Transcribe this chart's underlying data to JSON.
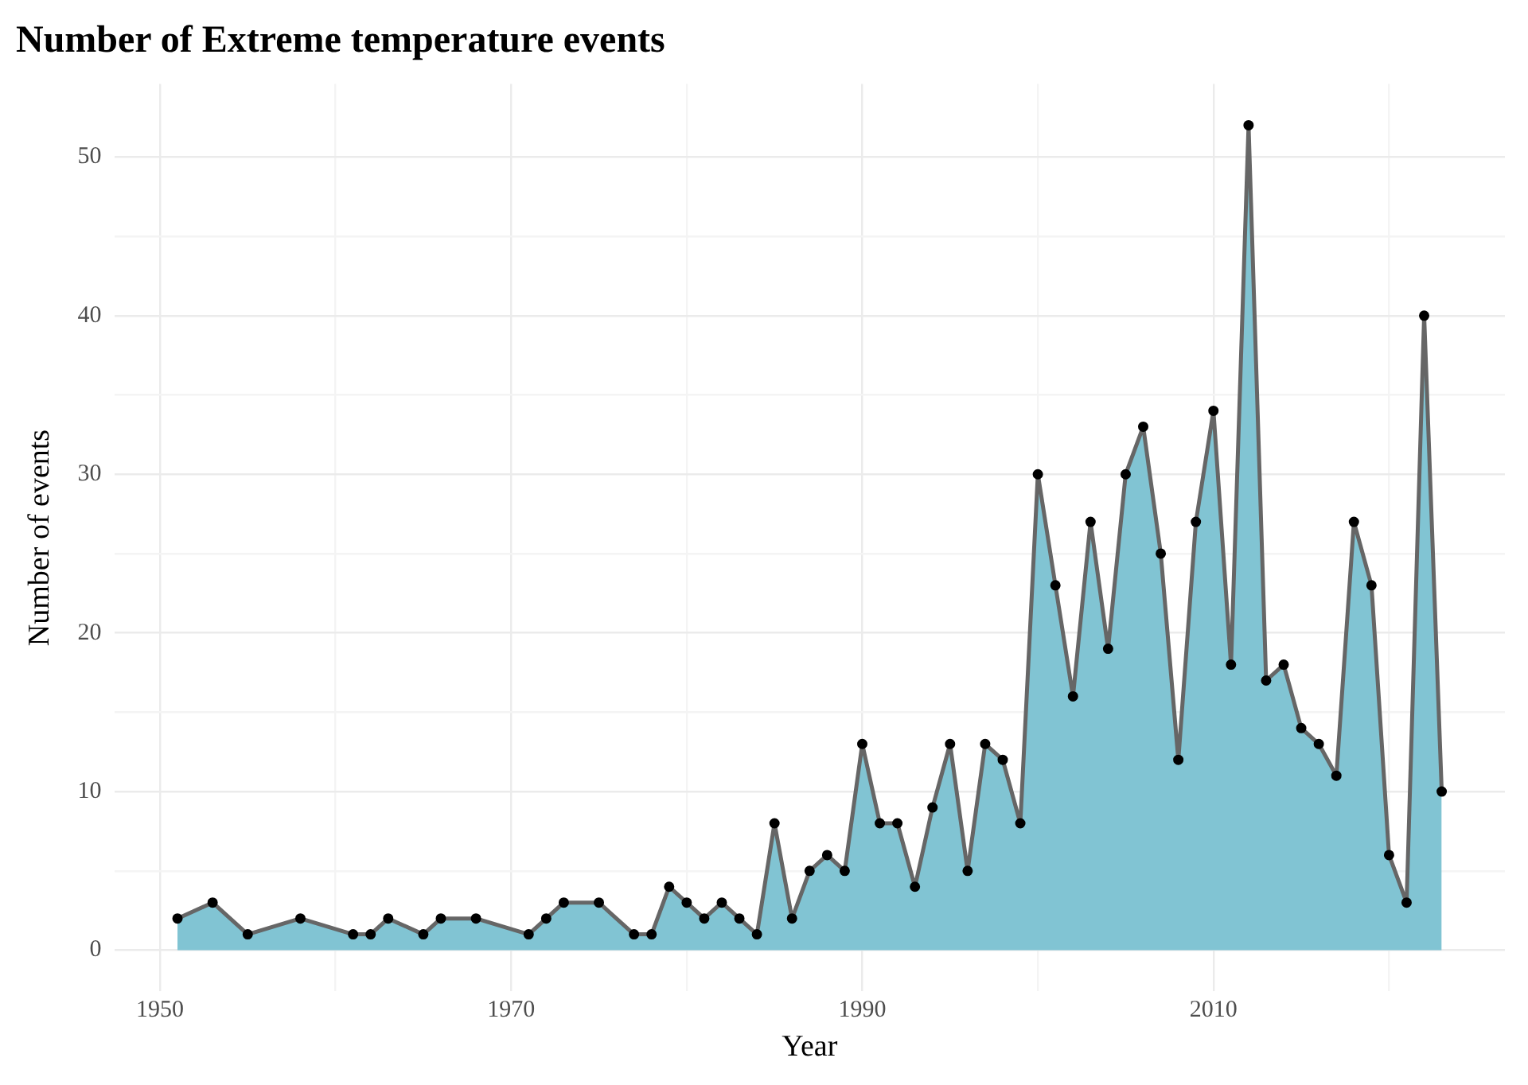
{
  "chart_data": {
    "type": "area",
    "title": "Number of Extreme temperature events",
    "xlabel": "Year",
    "ylabel": "Number of events",
    "x": [
      1951,
      1953,
      1955,
      1958,
      1961,
      1962,
      1963,
      1965,
      1966,
      1968,
      1971,
      1972,
      1973,
      1975,
      1977,
      1978,
      1979,
      1980,
      1981,
      1982,
      1983,
      1984,
      1985,
      1986,
      1987,
      1988,
      1989,
      1990,
      1991,
      1992,
      1993,
      1994,
      1995,
      1996,
      1997,
      1998,
      1999,
      2000,
      2001,
      2002,
      2003,
      2004,
      2005,
      2006,
      2007,
      2008,
      2009,
      2010,
      2011,
      2012,
      2013,
      2014,
      2015,
      2016,
      2017,
      2018,
      2019,
      2020,
      2021,
      2022,
      2023
    ],
    "series": [
      {
        "color": "#81c4d3",
        "values": [
          2,
          3,
          1,
          2,
          1,
          1,
          2,
          1,
          2,
          2,
          1,
          2,
          3,
          3,
          1,
          1,
          4,
          3,
          2,
          3,
          2,
          1,
          8,
          2,
          5,
          6,
          5,
          13,
          8,
          8,
          4,
          9,
          13,
          5,
          13,
          12,
          8,
          30,
          23,
          16,
          27,
          19,
          30,
          33,
          25,
          12,
          27,
          34,
          18,
          52,
          17,
          18,
          14,
          13,
          11,
          27,
          23,
          6,
          3,
          40,
          10
        ]
      }
    ],
    "xlim": [
      1947.4,
      2026.6
    ],
    "ylim": [
      -2.6,
      54.6
    ],
    "xticks": [
      1950,
      {
        "value": 1960,
        "label": null
      },
      1970,
      {
        "value": 1980,
        "label": null
      },
      1990,
      {
        "value": 2000,
        "label": null
      },
      2010,
      {
        "value": 2020,
        "label": null
      }
    ],
    "yticks": [
      0,
      {
        "value": 5,
        "label": null
      },
      10,
      {
        "value": 15,
        "label": null
      },
      20,
      {
        "value": 25,
        "label": null
      },
      30,
      {
        "value": 35,
        "label": null
      },
      40,
      {
        "value": 45,
        "label": null
      },
      50
    ],
    "grid": true,
    "marker": "circle",
    "line_style": "solid",
    "legend": false
  }
}
